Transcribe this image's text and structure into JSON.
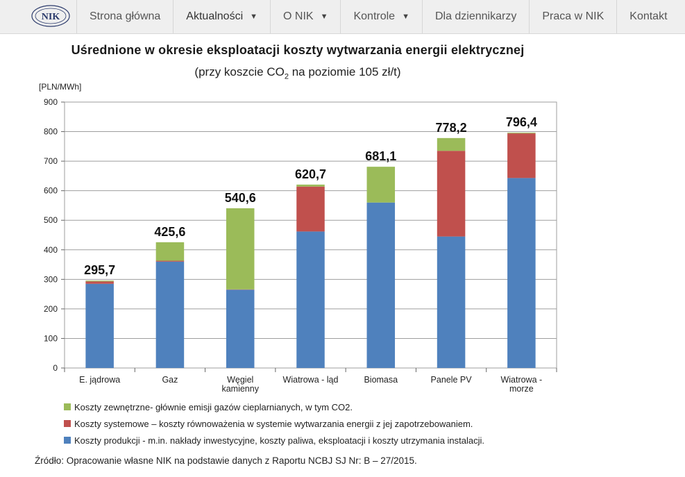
{
  "nav": {
    "logo_text": "NIK",
    "items": [
      {
        "label": "Strona główna",
        "dropdown": false,
        "active": false
      },
      {
        "label": "Aktualności",
        "dropdown": true,
        "active": true
      },
      {
        "label": "O NIK",
        "dropdown": true,
        "active": false
      },
      {
        "label": "Kontrole",
        "dropdown": true,
        "active": false
      },
      {
        "label": "Dla dziennikarzy",
        "dropdown": false,
        "active": false
      },
      {
        "label": "Praca w NIK",
        "dropdown": false,
        "active": false
      },
      {
        "label": "Kontakt",
        "dropdown": false,
        "active": false
      }
    ],
    "dropdown_icon": "caret-down-icon"
  },
  "chart_data": {
    "type": "bar",
    "stacked": true,
    "title": "Uśrednione w okresie eksploatacji koszty wytwarzania energii elektrycznej",
    "subtitle_prefix": "(przy koszcie CO",
    "subtitle_sub": "2",
    "subtitle_suffix": " na poziomie 105 zł/t)",
    "ylabel": "[PLN/MWh]",
    "ylim": [
      0,
      900
    ],
    "yticks": [
      0,
      100,
      200,
      300,
      400,
      500,
      600,
      700,
      800,
      900
    ],
    "grid": true,
    "categories": [
      [
        "E. jądrowa"
      ],
      [
        "Gaz"
      ],
      [
        "Węgiel",
        "kamienny"
      ],
      [
        "Wiatrowa - ląd"
      ],
      [
        "Biomasa"
      ],
      [
        "Panele PV"
      ],
      [
        "Wiatrowa -",
        "morze"
      ]
    ],
    "totals": [
      "295,7",
      "425,6",
      "540,6",
      "620,7",
      "681,1",
      "778,2",
      "796,4"
    ],
    "series": [
      {
        "name": "Koszty produkcji - m.in. nakłady inwestycyjne, koszty paliwa, eksploatacji i koszty utrzymania instalacji.",
        "color": "#4f81bd",
        "values": [
          285,
          360,
          265,
          462,
          560,
          445,
          643
        ]
      },
      {
        "name": "Koszty systemowe – koszty równoważenia w systemie wytwarzania energii z jej zapotrzebowaniem.",
        "color": "#c0504d",
        "values": [
          8,
          3,
          1,
          152,
          0,
          290,
          151
        ]
      },
      {
        "name": "Koszty zewnętrzne- głównie emisji gazów cieplarnianych, w tym CO2.",
        "color": "#9bbb59",
        "values": [
          2.7,
          62.6,
          274.6,
          6.7,
          121.1,
          43.2,
          2.4
        ]
      }
    ],
    "legend_order": [
      2,
      1,
      0
    ],
    "legend_position": "bottom"
  },
  "source": "Źródło: Opracowanie własne NIK na podstawie danych z Raportu NCBJ SJ Nr: B – 27/2015."
}
